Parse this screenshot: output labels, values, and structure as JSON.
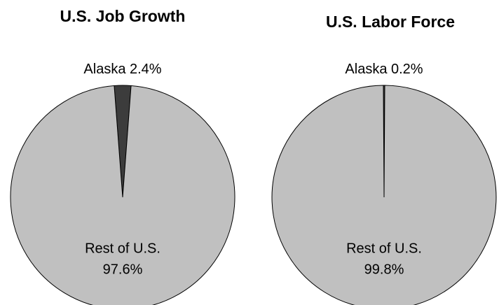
{
  "chart_data": [
    {
      "type": "pie",
      "title": "U.S. Job Growth",
      "categories": [
        "Alaska",
        "Rest of U.S."
      ],
      "values": [
        2.4,
        97.6
      ],
      "value_labels": [
        "2.4%",
        "97.6%"
      ],
      "colors": [
        "#3c3c3c",
        "#c0c0c0"
      ]
    },
    {
      "type": "pie",
      "title": "U.S. Labor Force",
      "categories": [
        "Alaska",
        "Rest of U.S."
      ],
      "values": [
        0.2,
        99.8
      ],
      "value_labels": [
        "0.2%",
        "99.8%"
      ],
      "colors": [
        "#3c3c3c",
        "#c0c0c0"
      ]
    }
  ]
}
